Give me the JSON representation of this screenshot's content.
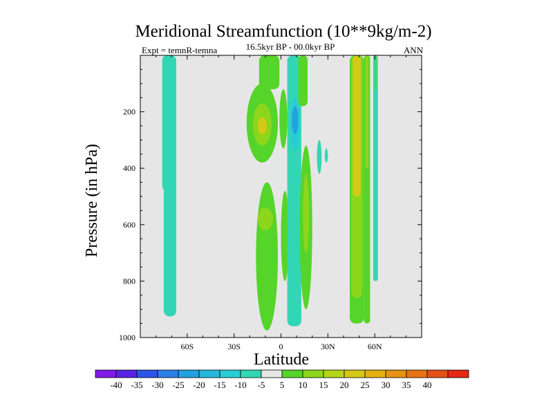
{
  "chart_data": {
    "type": "heatmap",
    "title": "Meridional Streamfunction (10**9kg/m-2)",
    "subtitle": "16.5kyr BP - 00.0kyr BP",
    "left_label": "Expt = temnR-temna",
    "right_label": "ANN",
    "xlabel": "Latitude",
    "ylabel": "Pressure (in hPa)",
    "xlim": [
      -90,
      90
    ],
    "ylim": [
      1000,
      0
    ],
    "x_ticks": [
      {
        "value": -60,
        "label": "60S"
      },
      {
        "value": -30,
        "label": "30S"
      },
      {
        "value": 0,
        "label": "0"
      },
      {
        "value": 30,
        "label": "30N"
      },
      {
        "value": 60,
        "label": "60N"
      }
    ],
    "y_ticks": [
      {
        "value": 200,
        "label": "200"
      },
      {
        "value": 400,
        "label": "400"
      },
      {
        "value": 600,
        "label": "600"
      },
      {
        "value": 800,
        "label": "800"
      },
      {
        "value": 1000,
        "label": "1000"
      }
    ],
    "background_color": "#e6e6e6",
    "colorbar": {
      "levels": [
        -40,
        -35,
        -30,
        -25,
        -20,
        -15,
        -10,
        -5,
        5,
        10,
        15,
        20,
        25,
        30,
        35,
        40
      ],
      "labels": [
        "-40",
        "-35",
        "-30",
        "-25",
        "-20",
        "-15",
        "-10",
        "-5",
        "5",
        "10",
        "15",
        "20",
        "25",
        "30",
        "35",
        "40"
      ],
      "colors": [
        "#7f1ae6",
        "#5a22e6",
        "#2d55e8",
        "#2a80e6",
        "#22a0e0",
        "#26b8dc",
        "#28ccd4",
        "#33d6b4",
        "#e6e6e6",
        "#55d42a",
        "#8cd61c",
        "#b4d418",
        "#d4c818",
        "#e4b014",
        "#e69214",
        "#e67414",
        "#e65014",
        "#e42a14"
      ]
    },
    "contour_regions": [
      {
        "lat_range": [
          -75,
          -67
        ],
        "p_range": [
          0,
          925
        ],
        "value": -7,
        "shape": "column"
      },
      {
        "lat_range": [
          -74,
          -68
        ],
        "p_range": [
          800,
          920
        ],
        "value": -6,
        "shape": "column"
      },
      {
        "lat_range": [
          -76,
          -70
        ],
        "p_range": [
          0,
          480
        ],
        "value": -9,
        "shape": "column"
      },
      {
        "lat_range": [
          -22,
          -2
        ],
        "p_range": [
          100,
          380
        ],
        "value": 7,
        "shape": "blob"
      },
      {
        "lat_range": [
          -18,
          -6
        ],
        "p_range": [
          170,
          320
        ],
        "value": 14,
        "shape": "blob"
      },
      {
        "lat_range": [
          -15,
          -9
        ],
        "p_range": [
          220,
          280
        ],
        "value": 23,
        "shape": "blob"
      },
      {
        "lat_range": [
          -14,
          -1
        ],
        "p_range": [
          0,
          120
        ],
        "value": 7,
        "shape": "column"
      },
      {
        "lat_range": [
          -1,
          4
        ],
        "p_range": [
          120,
          330
        ],
        "value": 7,
        "shape": "blob"
      },
      {
        "lat_range": [
          -16,
          -2
        ],
        "p_range": [
          450,
          975
        ],
        "value": 7,
        "shape": "blob"
      },
      {
        "lat_range": [
          -15,
          -5
        ],
        "p_range": [
          540,
          620
        ],
        "value": 12,
        "shape": "blob"
      },
      {
        "lat_range": [
          0,
          5
        ],
        "p_range": [
          480,
          800
        ],
        "value": 7,
        "shape": "blob"
      },
      {
        "lat_range": [
          4,
          13
        ],
        "p_range": [
          0,
          960
        ],
        "value": -8,
        "shape": "column"
      },
      {
        "lat_range": [
          6,
          12
        ],
        "p_range": [
          150,
          340
        ],
        "value": -15,
        "shape": "blob"
      },
      {
        "lat_range": [
          7,
          11
        ],
        "p_range": [
          180,
          280
        ],
        "value": -22,
        "shape": "blob"
      },
      {
        "lat_range": [
          11,
          17
        ],
        "p_range": [
          0,
          180
        ],
        "value": 7,
        "shape": "column"
      },
      {
        "lat_range": [
          12,
          20
        ],
        "p_range": [
          320,
          900
        ],
        "value": 7,
        "shape": "blob"
      },
      {
        "lat_range": [
          14,
          18
        ],
        "p_range": [
          420,
          700
        ],
        "value": 14,
        "shape": "blob"
      },
      {
        "lat_range": [
          23,
          26
        ],
        "p_range": [
          300,
          420
        ],
        "value": -6,
        "shape": "blob"
      },
      {
        "lat_range": [
          28,
          30
        ],
        "p_range": [
          330,
          380
        ],
        "value": -6,
        "shape": "blob"
      },
      {
        "lat_range": [
          44,
          53
        ],
        "p_range": [
          0,
          950
        ],
        "value": 7,
        "shape": "column"
      },
      {
        "lat_range": [
          45,
          52
        ],
        "p_range": [
          0,
          860
        ],
        "value": 14,
        "shape": "column"
      },
      {
        "lat_range": [
          46,
          51
        ],
        "p_range": [
          0,
          500
        ],
        "value": 22,
        "shape": "column"
      },
      {
        "lat_range": [
          53,
          57
        ],
        "p_range": [
          0,
          950
        ],
        "value": 7,
        "shape": "column"
      },
      {
        "lat_range": [
          54,
          56
        ],
        "p_range": [
          0,
          400
        ],
        "value": 14,
        "shape": "column"
      },
      {
        "lat_range": [
          59,
          62
        ],
        "p_range": [
          0,
          800
        ],
        "value": -6,
        "shape": "column"
      },
      {
        "lat_range": [
          60,
          61
        ],
        "p_range": [
          0,
          120
        ],
        "value": 7,
        "shape": "column"
      }
    ]
  }
}
